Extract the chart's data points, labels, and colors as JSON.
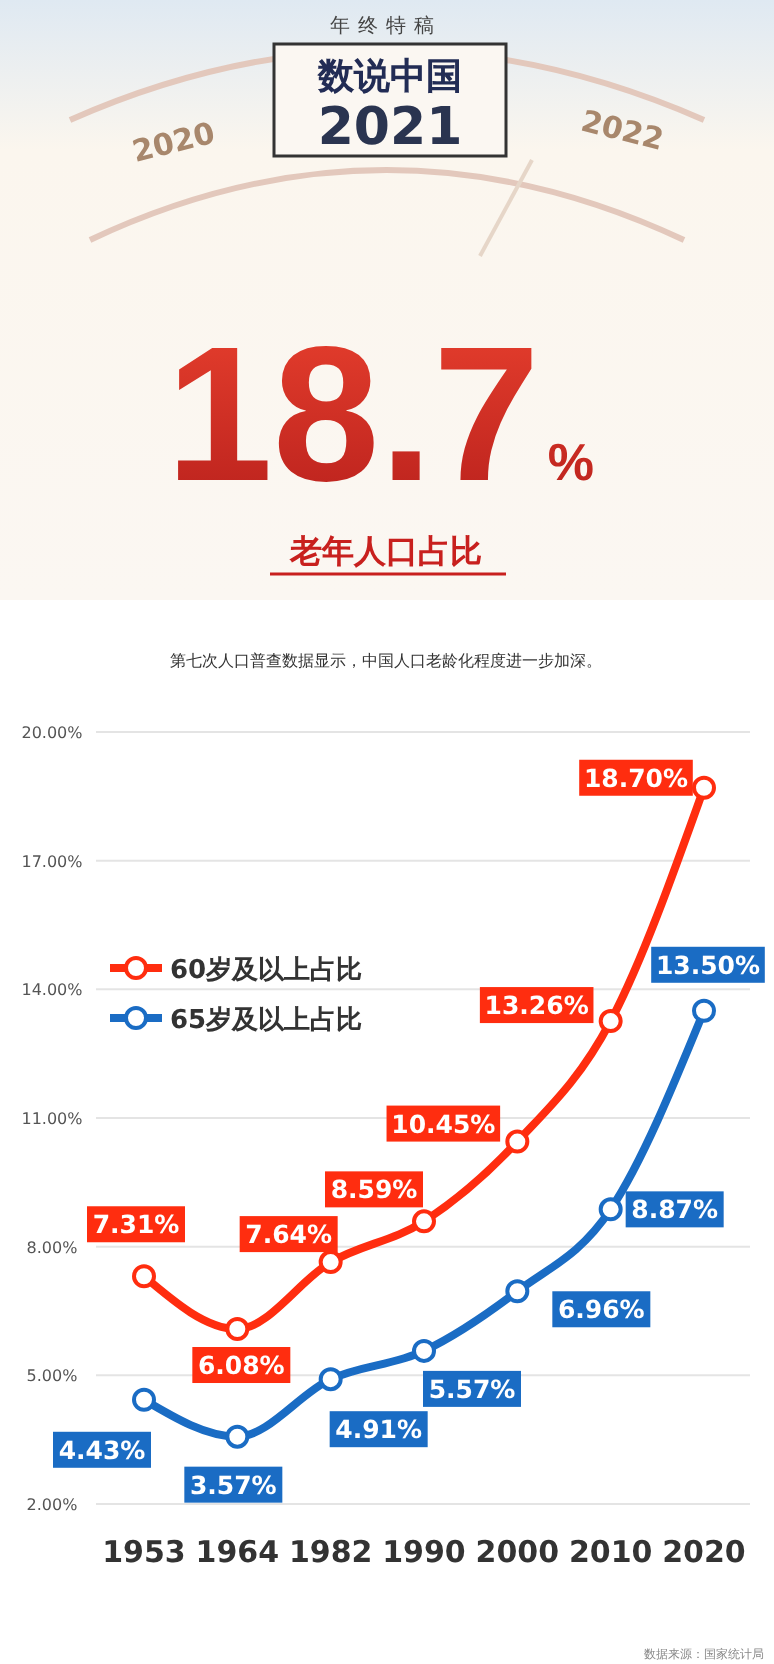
{
  "chart_data": {
    "type": "line",
    "title": "数说中国",
    "subtitle": "第七次人口普查数据显示，中国人口老龄化程度进一步加深。",
    "annotations": [
      "年终特稿",
      "2021",
      "2020",
      "2022",
      "18.7%",
      "老年人口占比",
      "数据来源：国家统计局"
    ],
    "categories": [
      "1953",
      "1964",
      "1982",
      "1990",
      "2000",
      "2010",
      "2020"
    ],
    "series": [
      {
        "name": "60岁及以上占比",
        "color": "#ff2d0f",
        "values": [
          7.31,
          6.08,
          7.64,
          8.59,
          10.45,
          13.26,
          18.7
        ],
        "value_labels": [
          "7.31%",
          "6.08%",
          "7.64%",
          "8.59%",
          "10.45%",
          "13.26%",
          "18.70%"
        ]
      },
      {
        "name": "65岁及以上占比",
        "color": "#1a6cc4",
        "values": [
          4.43,
          3.57,
          4.91,
          5.57,
          6.96,
          8.87,
          13.5
        ],
        "value_labels": [
          "4.43%",
          "3.57%",
          "4.91%",
          "5.57%",
          "6.96%",
          "8.87%",
          "13.50%"
        ]
      }
    ],
    "ylim": [
      2,
      20
    ],
    "yticks": [
      {
        "value": 2,
        "label": "2.00%"
      },
      {
        "value": 5,
        "label": "5.00%"
      },
      {
        "value": 8,
        "label": "8.00%"
      },
      {
        "value": 11,
        "label": "11.00%"
      },
      {
        "value": 14,
        "label": "14.00%"
      },
      {
        "value": 17,
        "label": "17.00%"
      },
      {
        "value": 20,
        "label": "20.00%"
      }
    ],
    "grid": "y",
    "legend": "left",
    "marker": "circle",
    "line_style": "solid"
  }
}
